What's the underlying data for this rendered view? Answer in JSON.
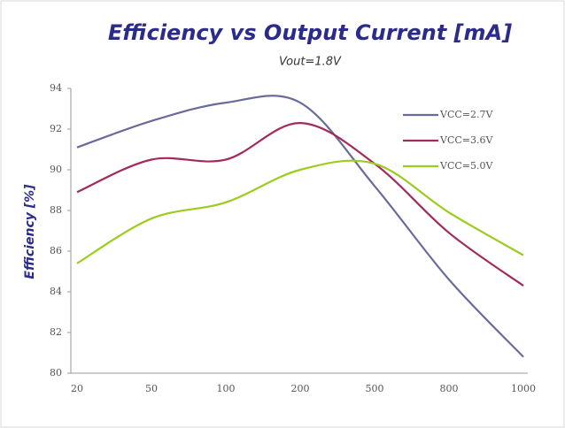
{
  "chart_data": {
    "type": "line",
    "title": "Efficiency vs Output Current [mA]",
    "subtitle": "Vout=1.8V",
    "y_label": "Efficiency [%]",
    "categories": [
      "20",
      "50",
      "100",
      "200",
      "500",
      "800",
      "1000"
    ],
    "series": [
      {
        "name": "VCC=2.7V",
        "color": "#6a6a9c",
        "values": [
          91.1,
          92.4,
          93.3,
          93.3,
          89.2,
          84.6,
          80.8
        ]
      },
      {
        "name": "VCC=3.6V",
        "color": "#a22a5c",
        "values": [
          88.9,
          90.5,
          90.5,
          92.3,
          90.3,
          86.9,
          84.3
        ]
      },
      {
        "name": "VCC=5.0V",
        "color": "#9ccc1e",
        "values": [
          85.4,
          87.6,
          88.4,
          90.0,
          90.3,
          87.9,
          85.8
        ]
      }
    ],
    "ylim": [
      80,
      94
    ],
    "yticks": [
      80,
      82,
      84,
      86,
      88,
      90,
      92,
      94
    ],
    "grid": false,
    "legend": "top-right"
  }
}
